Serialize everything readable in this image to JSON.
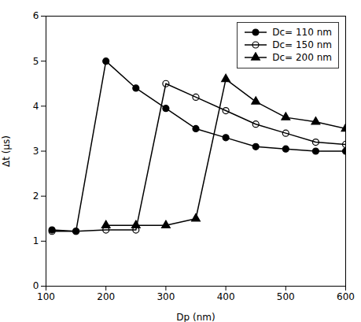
{
  "chart_data": {
    "type": "line",
    "xlabel": "Dp (nm)",
    "ylabel": "Δt (μs)",
    "xlim": [
      100,
      600
    ],
    "ylim": [
      0,
      6
    ],
    "xticks": [
      100,
      200,
      300,
      400,
      500,
      600
    ],
    "yticks": [
      0,
      1,
      2,
      3,
      4,
      5,
      6
    ],
    "legend": "upper right",
    "series": [
      {
        "name": "Dc= 110 nm",
        "color": "black",
        "marker": "circle",
        "x": [
          110,
          150,
          200,
          250,
          300,
          350,
          400,
          450,
          500,
          550,
          600
        ],
        "values": [
          1.25,
          1.22,
          5.0,
          4.4,
          3.95,
          3.5,
          3.3,
          3.1,
          3.05,
          3.0,
          3.0
        ]
      },
      {
        "name": "Dc= 150 nm",
        "color": "black",
        "marker": "open_circle",
        "x": [
          110,
          150,
          200,
          250,
          300,
          350,
          400,
          450,
          500,
          550,
          600
        ],
        "values": [
          1.22,
          1.22,
          1.25,
          1.25,
          4.5,
          4.2,
          3.9,
          3.6,
          3.4,
          3.2,
          3.15
        ]
      },
      {
        "name": "Dc= 200 nm",
        "color": "black",
        "marker": "triangle",
        "x": [
          200,
          250,
          300,
          350,
          400,
          450,
          500,
          550,
          600
        ],
        "values": [
          1.35,
          1.35,
          1.35,
          1.5,
          4.6,
          4.1,
          3.75,
          3.65,
          3.5
        ]
      }
    ]
  }
}
